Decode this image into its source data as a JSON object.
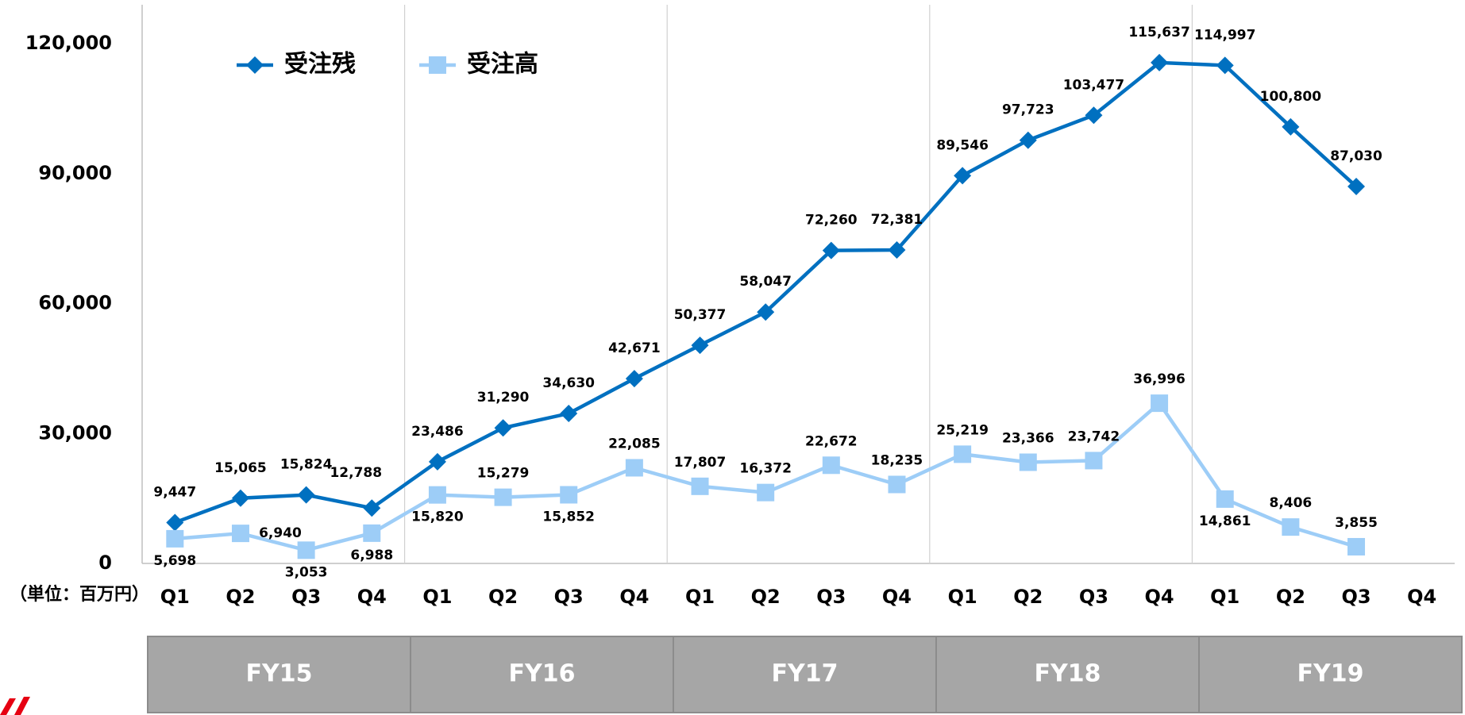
{
  "chart_data": {
    "type": "line",
    "unit_label": "（単位：百万円）",
    "categories": [
      "Q1",
      "Q2",
      "Q3",
      "Q4",
      "Q1",
      "Q2",
      "Q3",
      "Q4",
      "Q1",
      "Q2",
      "Q3",
      "Q4",
      "Q1",
      "Q2",
      "Q3",
      "Q4",
      "Q1",
      "Q2",
      "Q3",
      "Q4"
    ],
    "groups": [
      "FY15",
      "FY16",
      "FY17",
      "FY18",
      "FY19"
    ],
    "series": [
      {
        "name": "受注残",
        "color": "#0070c0",
        "marker": "diamond",
        "values": [
          9447,
          15065,
          15824,
          12788,
          23486,
          31290,
          34630,
          42671,
          50377,
          58047,
          72260,
          72381,
          89546,
          97723,
          103477,
          115637,
          114997,
          100800,
          87030,
          null
        ],
        "value_labels": [
          "9,447",
          "15,065",
          "15,824",
          "12,788",
          "23,486",
          "31,290",
          "34,630",
          "42,671",
          "50,377",
          "58,047",
          "72,260",
          "72,381",
          "89,546",
          "97,723",
          "103,477",
          "115,637",
          "114,997",
          "100,800",
          "87,030",
          null
        ]
      },
      {
        "name": "受注高",
        "color": "#9dcdf7",
        "marker": "square",
        "values": [
          5698,
          6940,
          3053,
          6988,
          15820,
          15279,
          15852,
          22085,
          17807,
          16372,
          22672,
          18235,
          25219,
          23366,
          23742,
          36996,
          14861,
          8406,
          3855,
          null
        ],
        "value_labels": [
          "5,698",
          "6,940",
          "3,053",
          "6,988",
          "15,820",
          "15,279",
          "15,852",
          "22,085",
          "17,807",
          "16,372",
          "22,672",
          "18,235",
          "25,219",
          "23,366",
          "23,742",
          "36,996",
          "14,861",
          "8,406",
          "3,855",
          null
        ]
      }
    ],
    "ylim": [
      0,
      129000
    ],
    "yticks": [
      0,
      {
        "value": 30000,
        "label": "30,000"
      },
      {
        "value": 60000,
        "label": "60,000"
      },
      {
        "value": 90000,
        "label": "90,000"
      },
      {
        "value": 120000,
        "label": "120,000"
      }
    ],
    "grid": false
  }
}
